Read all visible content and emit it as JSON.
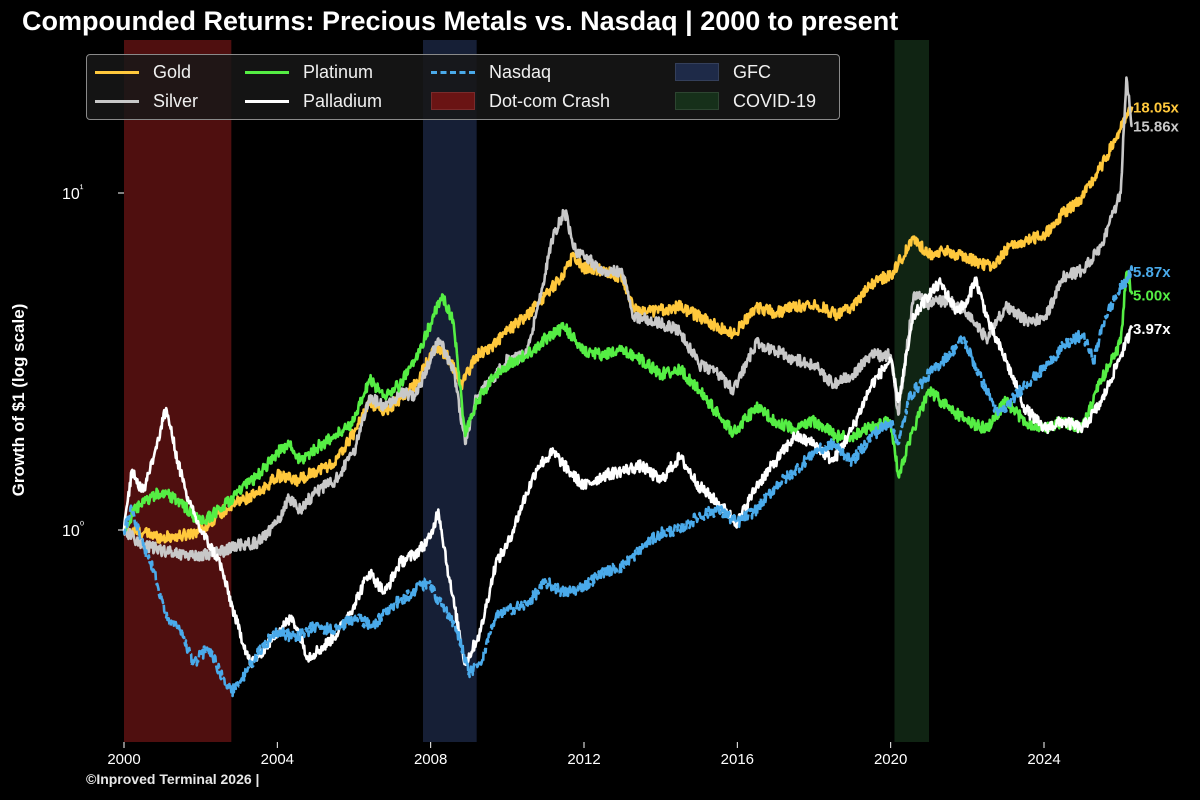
{
  "title": "Compounded Returns: Precious Metals vs. Nasdaq | 2000 to present",
  "credit": "©Inproved Terminal 2026 |",
  "chart_data": {
    "type": "line",
    "title": "Compounded Returns: Precious Metals vs. Nasdaq | 2000 to present",
    "xlabel": "",
    "ylabel": "Growth of $1 (log scale)",
    "yscale": "log",
    "xlim": [
      1999.6,
      2026.6
    ],
    "ylim": [
      0.3,
      26
    ],
    "x_ticks": [
      2000,
      2004,
      2008,
      2012,
      2016,
      2020,
      2024
    ],
    "y_ticks": [
      {
        "value": 1,
        "label": "10⁰"
      },
      {
        "value": 10,
        "label": "10¹"
      }
    ],
    "grid": false,
    "legend_placement": "top-left",
    "series": [
      {
        "name": "Gold",
        "color": "#ffc83c",
        "style": "solid",
        "end_label": "18.05x",
        "x": [
          2000.0,
          2000.5,
          2001.0,
          2001.5,
          2002.0,
          2002.5,
          2003.0,
          2003.5,
          2004.0,
          2004.5,
          2005.0,
          2005.5,
          2006.0,
          2006.4,
          2006.8,
          2007.2,
          2007.6,
          2008.0,
          2008.2,
          2008.5,
          2008.8,
          2009.2,
          2009.6,
          2010.0,
          2010.5,
          2011.0,
          2011.4,
          2011.7,
          2012.0,
          2012.5,
          2013.0,
          2013.3,
          2013.5,
          2014.0,
          2014.5,
          2015.0,
          2015.5,
          2015.9,
          2016.5,
          2017.0,
          2017.5,
          2018.0,
          2018.6,
          2019.0,
          2019.6,
          2020.0,
          2020.6,
          2021.0,
          2021.5,
          2022.0,
          2022.7,
          2023.0,
          2023.5,
          2024.0,
          2024.5,
          2025.0,
          2025.5,
          2026.0,
          2026.3
        ],
        "values": [
          1.0,
          0.98,
          0.95,
          0.96,
          1.0,
          1.12,
          1.22,
          1.28,
          1.45,
          1.4,
          1.5,
          1.58,
          1.95,
          2.4,
          2.25,
          2.45,
          2.7,
          3.3,
          3.5,
          3.2,
          2.7,
          3.3,
          3.5,
          3.9,
          4.3,
          5.0,
          5.6,
          6.5,
          6.0,
          5.9,
          5.6,
          4.6,
          4.4,
          4.5,
          4.6,
          4.3,
          4.0,
          3.8,
          4.6,
          4.4,
          4.6,
          4.7,
          4.35,
          4.6,
          5.5,
          5.7,
          7.3,
          6.6,
          6.7,
          6.4,
          6.0,
          6.8,
          7.2,
          7.5,
          8.7,
          9.7,
          12.0,
          15.5,
          18.05
        ]
      },
      {
        "name": "Silver",
        "color": "#c8c8c8",
        "style": "solid",
        "end_label": "15.86x",
        "x": [
          2000.0,
          2000.5,
          2001.0,
          2001.5,
          2002.0,
          2002.5,
          2003.0,
          2003.5,
          2004.0,
          2004.3,
          2004.6,
          2005.0,
          2005.5,
          2006.0,
          2006.4,
          2006.8,
          2007.2,
          2007.6,
          2008.0,
          2008.2,
          2008.6,
          2008.9,
          2009.2,
          2009.6,
          2010.0,
          2010.5,
          2010.9,
          2011.2,
          2011.5,
          2011.8,
          2012.0,
          2012.5,
          2013.0,
          2013.3,
          2013.7,
          2014.0,
          2014.5,
          2015.0,
          2015.5,
          2015.9,
          2016.5,
          2017.0,
          2017.5,
          2018.0,
          2018.5,
          2019.0,
          2019.5,
          2020.0,
          2020.2,
          2020.6,
          2021.0,
          2021.5,
          2022.0,
          2022.5,
          2023.0,
          2023.5,
          2024.0,
          2024.5,
          2025.0,
          2025.5,
          2026.0,
          2026.15,
          2026.3
        ],
        "values": [
          1.0,
          0.9,
          0.87,
          0.85,
          0.84,
          0.86,
          0.9,
          0.92,
          1.05,
          1.25,
          1.15,
          1.3,
          1.4,
          1.7,
          2.5,
          2.3,
          2.55,
          2.5,
          3.2,
          3.7,
          3.0,
          1.8,
          2.5,
          2.8,
          3.2,
          3.3,
          5.2,
          7.5,
          8.8,
          6.6,
          6.5,
          5.9,
          5.8,
          4.3,
          4.2,
          4.1,
          3.9,
          3.1,
          2.9,
          2.6,
          3.6,
          3.4,
          3.2,
          3.1,
          2.7,
          2.9,
          3.3,
          3.3,
          2.2,
          5.0,
          4.7,
          4.8,
          4.4,
          3.7,
          4.6,
          4.2,
          4.2,
          5.6,
          5.9,
          7.0,
          10.0,
          22.0,
          15.86
        ]
      },
      {
        "name": "Platinum",
        "color": "#55ee44",
        "style": "solid",
        "end_label": "5.00x",
        "x": [
          2000.0,
          2000.3,
          2000.7,
          2001.0,
          2001.5,
          2002.0,
          2002.5,
          2003.0,
          2003.5,
          2004.0,
          2004.3,
          2004.6,
          2005.0,
          2005.5,
          2006.0,
          2006.4,
          2006.8,
          2007.2,
          2007.6,
          2008.0,
          2008.3,
          2008.6,
          2008.9,
          2009.2,
          2009.6,
          2010.0,
          2010.5,
          2011.0,
          2011.5,
          2012.0,
          2012.5,
          2013.0,
          2013.5,
          2014.0,
          2014.5,
          2015.0,
          2015.5,
          2015.9,
          2016.5,
          2017.0,
          2017.5,
          2018.0,
          2018.6,
          2019.0,
          2019.6,
          2020.0,
          2020.2,
          2020.6,
          2021.0,
          2021.5,
          2022.0,
          2022.5,
          2023.0,
          2023.5,
          2024.0,
          2024.5,
          2025.0,
          2025.5,
          2026.0,
          2026.15,
          2026.3
        ],
        "values": [
          1.0,
          1.15,
          1.25,
          1.3,
          1.2,
          1.05,
          1.15,
          1.3,
          1.45,
          1.7,
          1.8,
          1.6,
          1.75,
          1.9,
          2.1,
          2.8,
          2.5,
          2.7,
          3.2,
          4.1,
          5.0,
          4.1,
          1.9,
          2.4,
          2.8,
          3.1,
          3.3,
          3.7,
          4.0,
          3.4,
          3.3,
          3.4,
          3.2,
          2.9,
          3.0,
          2.6,
          2.2,
          1.95,
          2.3,
          2.1,
          2.0,
          2.1,
          1.9,
          1.9,
          2.05,
          2.1,
          1.45,
          2.0,
          2.6,
          2.3,
          2.1,
          2.0,
          2.4,
          2.1,
          2.0,
          2.1,
          2.0,
          2.8,
          3.6,
          5.8,
          5.0
        ]
      },
      {
        "name": "Palladium",
        "color": "#ffffff",
        "style": "solid",
        "end_label": "3.97x",
        "x": [
          2000.0,
          2000.2,
          2000.5,
          2000.8,
          2001.1,
          2001.4,
          2001.7,
          2002.0,
          2002.5,
          2002.9,
          2003.3,
          2003.7,
          2004.0,
          2004.4,
          2004.8,
          2005.2,
          2005.6,
          2006.0,
          2006.4,
          2006.8,
          2007.2,
          2007.6,
          2008.0,
          2008.2,
          2008.5,
          2008.9,
          2009.3,
          2009.7,
          2010.0,
          2010.4,
          2010.8,
          2011.2,
          2011.6,
          2012.0,
          2012.5,
          2013.0,
          2013.5,
          2014.0,
          2014.5,
          2015.0,
          2015.5,
          2016.0,
          2016.5,
          2017.0,
          2017.5,
          2018.0,
          2018.5,
          2019.0,
          2019.5,
          2020.0,
          2020.2,
          2020.6,
          2021.0,
          2021.3,
          2021.7,
          2022.0,
          2022.2,
          2022.6,
          2023.0,
          2023.5,
          2024.0,
          2024.5,
          2025.0,
          2025.5,
          2026.0,
          2026.3
        ],
        "values": [
          1.0,
          1.5,
          1.3,
          1.7,
          2.3,
          1.6,
          1.2,
          1.0,
          0.8,
          0.55,
          0.4,
          0.45,
          0.5,
          0.55,
          0.42,
          0.45,
          0.5,
          0.6,
          0.75,
          0.65,
          0.8,
          0.85,
          0.95,
          1.15,
          0.7,
          0.4,
          0.5,
          0.8,
          0.9,
          1.2,
          1.55,
          1.7,
          1.5,
          1.35,
          1.45,
          1.5,
          1.55,
          1.4,
          1.65,
          1.35,
          1.2,
          1.05,
          1.35,
          1.6,
          1.9,
          1.8,
          1.6,
          2.0,
          2.7,
          3.2,
          2.4,
          4.3,
          5.0,
          5.4,
          4.5,
          4.7,
          5.6,
          4.0,
          3.2,
          2.3,
          2.0,
          2.1,
          2.0,
          2.4,
          3.3,
          3.97
        ]
      },
      {
        "name": "Nasdaq",
        "color": "#4aaaea",
        "style": "dashed",
        "end_label": "5.87x",
        "x": [
          2000.0,
          2000.2,
          2000.5,
          2000.8,
          2001.1,
          2001.5,
          2001.8,
          2002.2,
          2002.5,
          2002.8,
          2003.2,
          2003.6,
          2004.0,
          2004.5,
          2005.0,
          2005.5,
          2006.0,
          2006.5,
          2007.0,
          2007.5,
          2007.9,
          2008.3,
          2008.7,
          2009.0,
          2009.3,
          2009.7,
          2010.0,
          2010.5,
          2011.0,
          2011.5,
          2012.0,
          2012.5,
          2013.0,
          2013.5,
          2014.0,
          2014.5,
          2015.0,
          2015.5,
          2016.0,
          2016.5,
          2017.0,
          2017.5,
          2018.0,
          2018.5,
          2019.0,
          2019.5,
          2020.0,
          2020.2,
          2020.5,
          2021.0,
          2021.5,
          2021.9,
          2022.3,
          2022.8,
          2023.0,
          2023.5,
          2024.0,
          2024.5,
          2025.0,
          2025.3,
          2025.6,
          2026.0,
          2026.3
        ],
        "values": [
          1.0,
          1.15,
          0.9,
          0.75,
          0.55,
          0.5,
          0.4,
          0.45,
          0.38,
          0.33,
          0.38,
          0.45,
          0.5,
          0.48,
          0.52,
          0.5,
          0.55,
          0.52,
          0.6,
          0.65,
          0.7,
          0.6,
          0.5,
          0.38,
          0.4,
          0.55,
          0.58,
          0.6,
          0.7,
          0.65,
          0.68,
          0.75,
          0.78,
          0.88,
          0.98,
          1.0,
          1.1,
          1.15,
          1.05,
          1.15,
          1.35,
          1.5,
          1.7,
          1.8,
          1.6,
          1.9,
          2.1,
          1.8,
          2.5,
          2.9,
          3.3,
          3.7,
          2.9,
          2.2,
          2.3,
          2.7,
          3.0,
          3.5,
          3.8,
          3.2,
          4.3,
          5.2,
          5.87
        ]
      }
    ],
    "shaded_regions": [
      {
        "name": "Dot-com Crash",
        "start": 2000.0,
        "end": 2002.8,
        "color": "#6a1414"
      },
      {
        "name": "GFC",
        "start": 2007.8,
        "end": 2009.2,
        "color": "#1e2a48"
      },
      {
        "name": "COVID-19",
        "start": 2020.1,
        "end": 2021.0,
        "color": "#16301a"
      }
    ]
  },
  "legend": {
    "items": [
      {
        "label": "Gold",
        "kind": "line",
        "color": "#ffc83c"
      },
      {
        "label": "Silver",
        "kind": "line",
        "color": "#c8c8c8"
      },
      {
        "label": "Platinum",
        "kind": "line",
        "color": "#55ee44"
      },
      {
        "label": "Palladium",
        "kind": "line",
        "color": "#ffffff"
      },
      {
        "label": "Nasdaq",
        "kind": "dash",
        "color": "#4aaaea"
      },
      {
        "label": "Dot-com Crash",
        "kind": "patch",
        "color": "#6a1414"
      },
      {
        "label": "GFC",
        "kind": "patch",
        "color": "#1e2a48"
      },
      {
        "label": "COVID-19",
        "kind": "patch",
        "color": "#16301a"
      }
    ]
  }
}
